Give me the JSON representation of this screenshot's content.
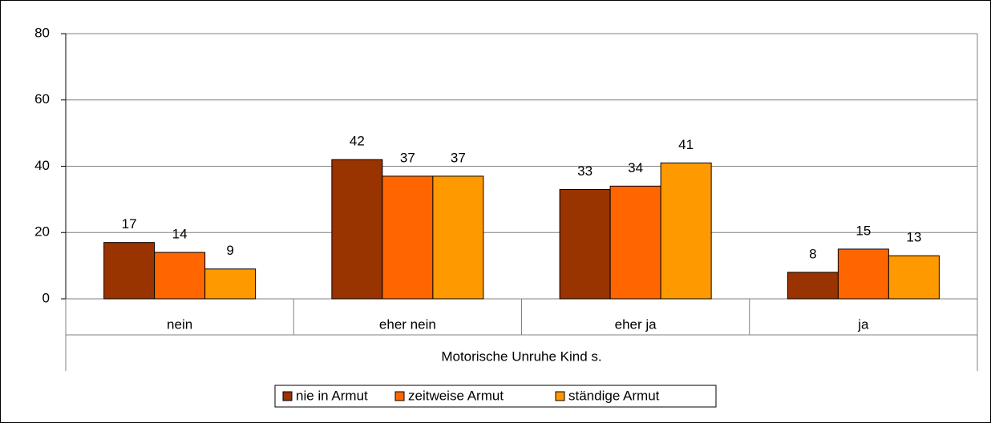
{
  "chart_data": {
    "type": "bar",
    "x_label": "Motorische Unruhe Kind s.",
    "categories": [
      "nein",
      "eher nein",
      "eher ja",
      "ja"
    ],
    "series": [
      {
        "name": "nie in Armut",
        "color": "#993300",
        "values": [
          17,
          42,
          33,
          8
        ]
      },
      {
        "name": "zeitweise Armut",
        "color": "#FF6600",
        "values": [
          14,
          37,
          34,
          15
        ]
      },
      {
        "name": "ständige Armut",
        "color": "#FF9900",
        "values": [
          9,
          37,
          41,
          13
        ]
      }
    ],
    "ylim": [
      0,
      80
    ],
    "yticks": [
      0,
      20,
      40,
      60,
      80
    ],
    "grid": true,
    "legend": "bottom"
  }
}
